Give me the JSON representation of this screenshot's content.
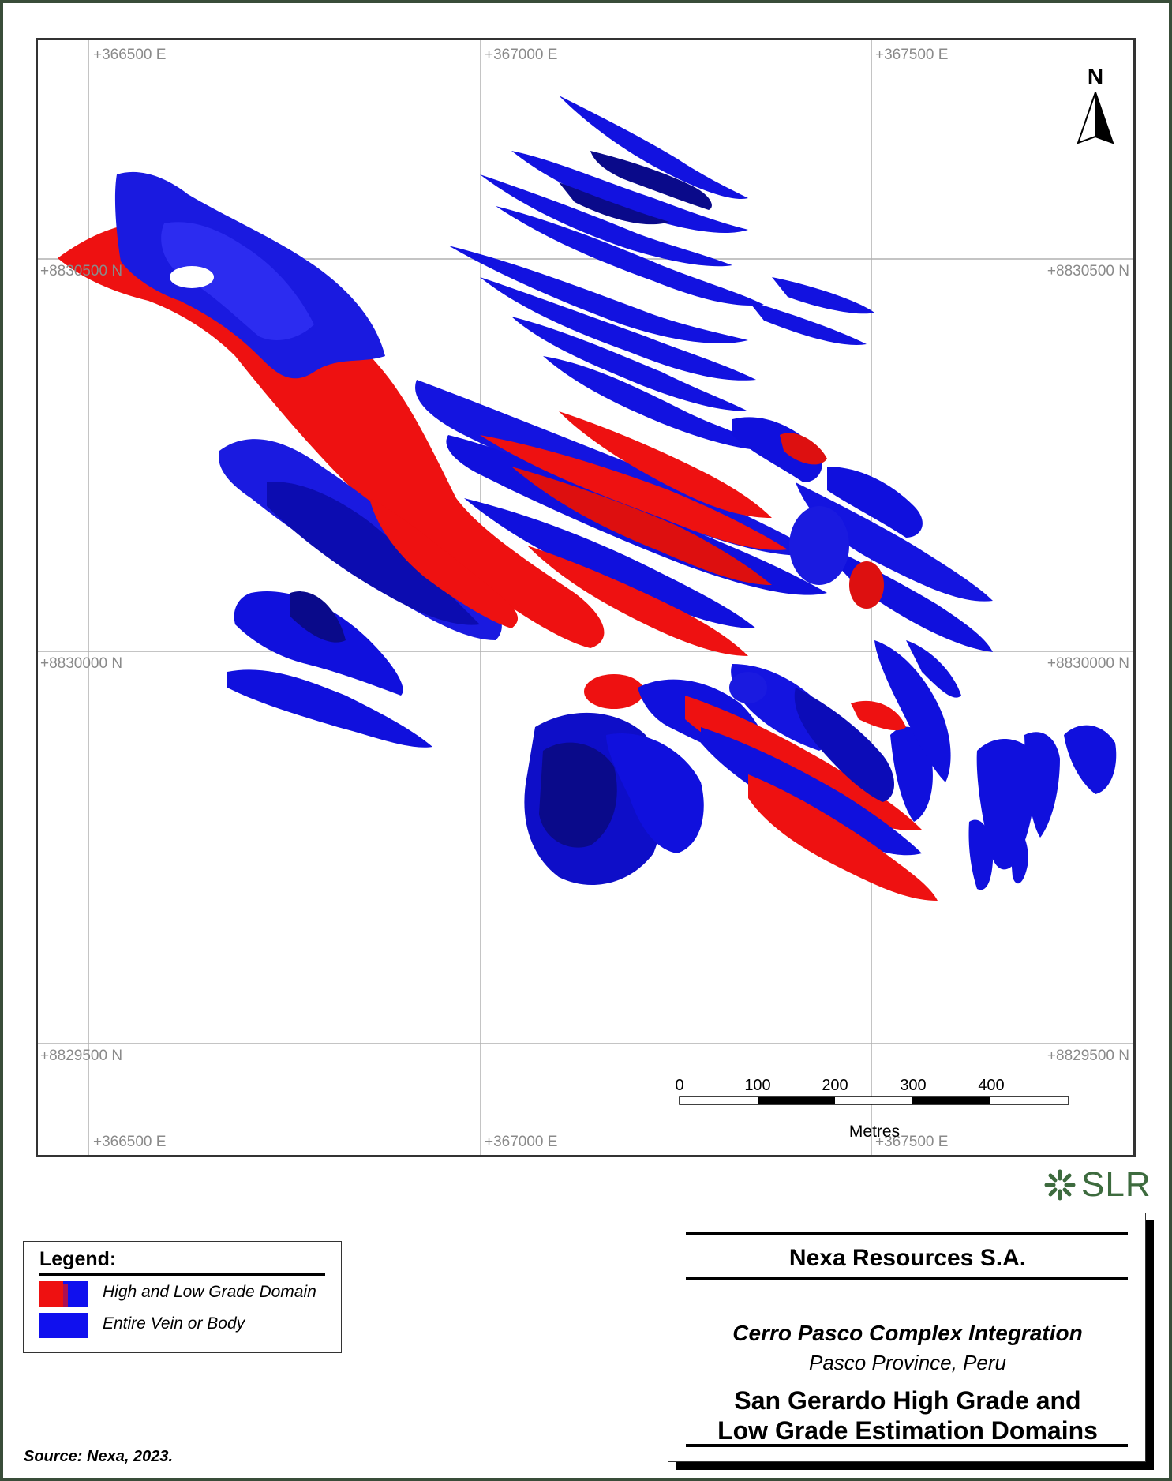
{
  "map": {
    "grid_labels": {
      "top_easting": [
        "+366500 E",
        "+367000 E",
        "+367500 E"
      ],
      "bottom_easting": [
        "+366500 E",
        "+367000 E",
        "+367500 E"
      ],
      "left_northing": [
        "+8830500 N",
        "+8830000 N",
        "+8829500 N"
      ],
      "right_northing": [
        "+8830500 N",
        "+8830000 N",
        "+8829500 N"
      ]
    },
    "north_arrow": "N",
    "scale_bar": {
      "ticks": [
        "0",
        "100",
        "200",
        "300",
        "400"
      ],
      "unit": "Metres"
    },
    "colors": {
      "high_low_grade": "#ee1111",
      "vein_body": "#1010dd",
      "vein_body_dark": "#0a0a8a",
      "grid": "#b0b0b0"
    }
  },
  "logo": {
    "text": "SLR",
    "icon": "slr-burst-icon",
    "color": "#3d6b3e"
  },
  "legend": {
    "title": "Legend:",
    "items": [
      {
        "label": "High and Low Grade Domain",
        "icon": "red-blue-swatch"
      },
      {
        "label": "Entire Vein or Body",
        "icon": "blue-swatch"
      }
    ]
  },
  "title_block": {
    "company": "Nexa Resources S.A.",
    "project": "Cerro Pasco Complex Integration",
    "location": "Pasco Province, Peru",
    "figure_title_line1": "San Gerardo High Grade and",
    "figure_title_line2": "Low Grade Estimation Domains"
  },
  "source": "Source:  Nexa, 2023."
}
